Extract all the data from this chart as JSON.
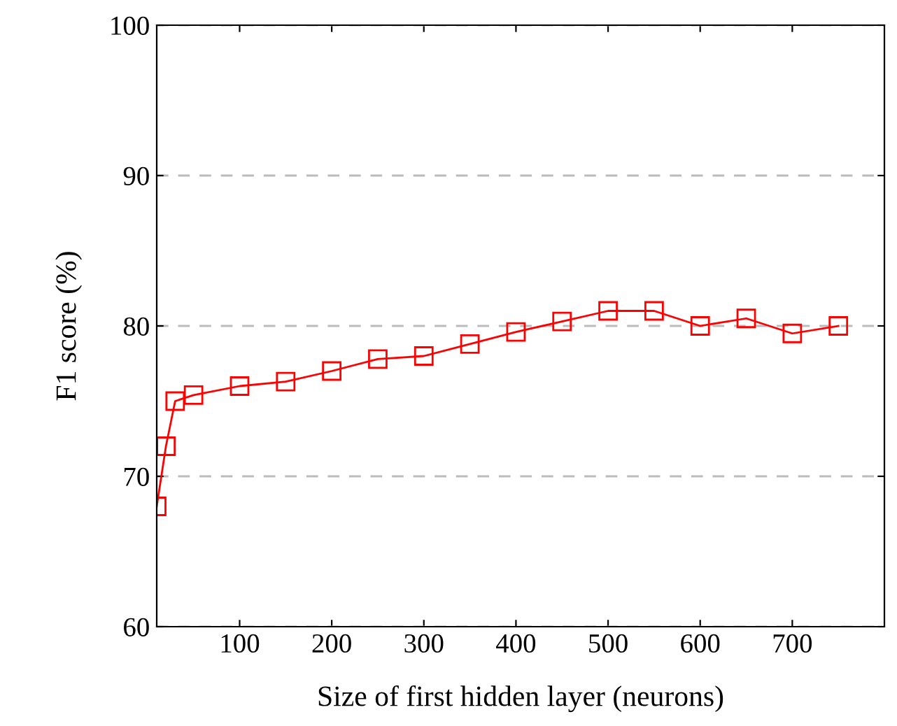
{
  "chart_data": {
    "type": "line",
    "xlabel": "Size of first hidden layer (neurons)",
    "ylabel": "F1 score (%)",
    "x": [
      10,
      20,
      30,
      50,
      100,
      150,
      200,
      250,
      300,
      350,
      400,
      450,
      500,
      550,
      600,
      650,
      700,
      750
    ],
    "series": [
      {
        "color": "#ff0000",
        "values": [
          68,
          72,
          75,
          75.4,
          76,
          76.3,
          77,
          77.8,
          78,
          78.8,
          79.6,
          80.3,
          81,
          81,
          80,
          80.5,
          79.5,
          80
        ]
      }
    ],
    "xlim": [
      10,
      800
    ],
    "ylim": [
      60,
      100
    ],
    "xticks": [
      100,
      200,
      300,
      400,
      500,
      600,
      700
    ],
    "yticks": [
      60,
      70,
      80,
      90,
      100
    ],
    "grid": "y",
    "marker": "square",
    "line_style": "solid"
  }
}
